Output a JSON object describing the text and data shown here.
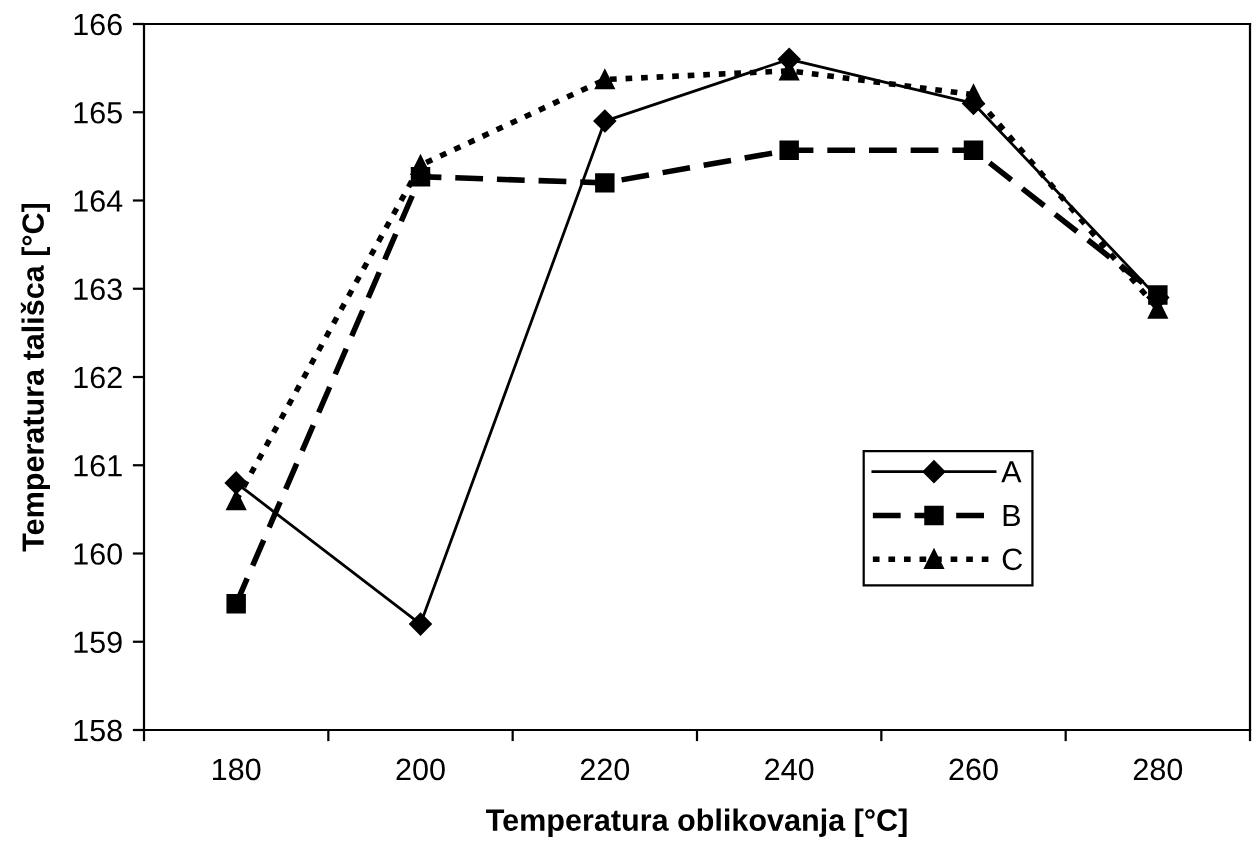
{
  "chart_data": {
    "type": "line",
    "xlabel": "Temperatura oblikovanja [°C]",
    "ylabel": "Temperatura tališca [°C]",
    "categories": [
      "180",
      "200",
      "220",
      "240",
      "260",
      "280"
    ],
    "series": [
      {
        "name": "A",
        "color": "#000000",
        "marker": "diamond",
        "line_style": "solid",
        "values": [
          160.8,
          159.2,
          164.9,
          165.6,
          165.1,
          162.9
        ]
      },
      {
        "name": "B",
        "color": "#000000",
        "marker": "square",
        "line_style": "dashed",
        "values": [
          159.43,
          164.27,
          164.2,
          164.57,
          164.57,
          162.93
        ]
      },
      {
        "name": "C",
        "color": "#000000",
        "marker": "triangle",
        "line_style": "dotted",
        "values": [
          160.6,
          164.4,
          165.37,
          165.47,
          165.2,
          162.77
        ]
      }
    ],
    "ylim": [
      158,
      166
    ],
    "yticks": [
      158,
      159,
      160,
      161,
      162,
      163,
      164,
      165,
      166
    ],
    "grid": false,
    "legend": "center right"
  }
}
